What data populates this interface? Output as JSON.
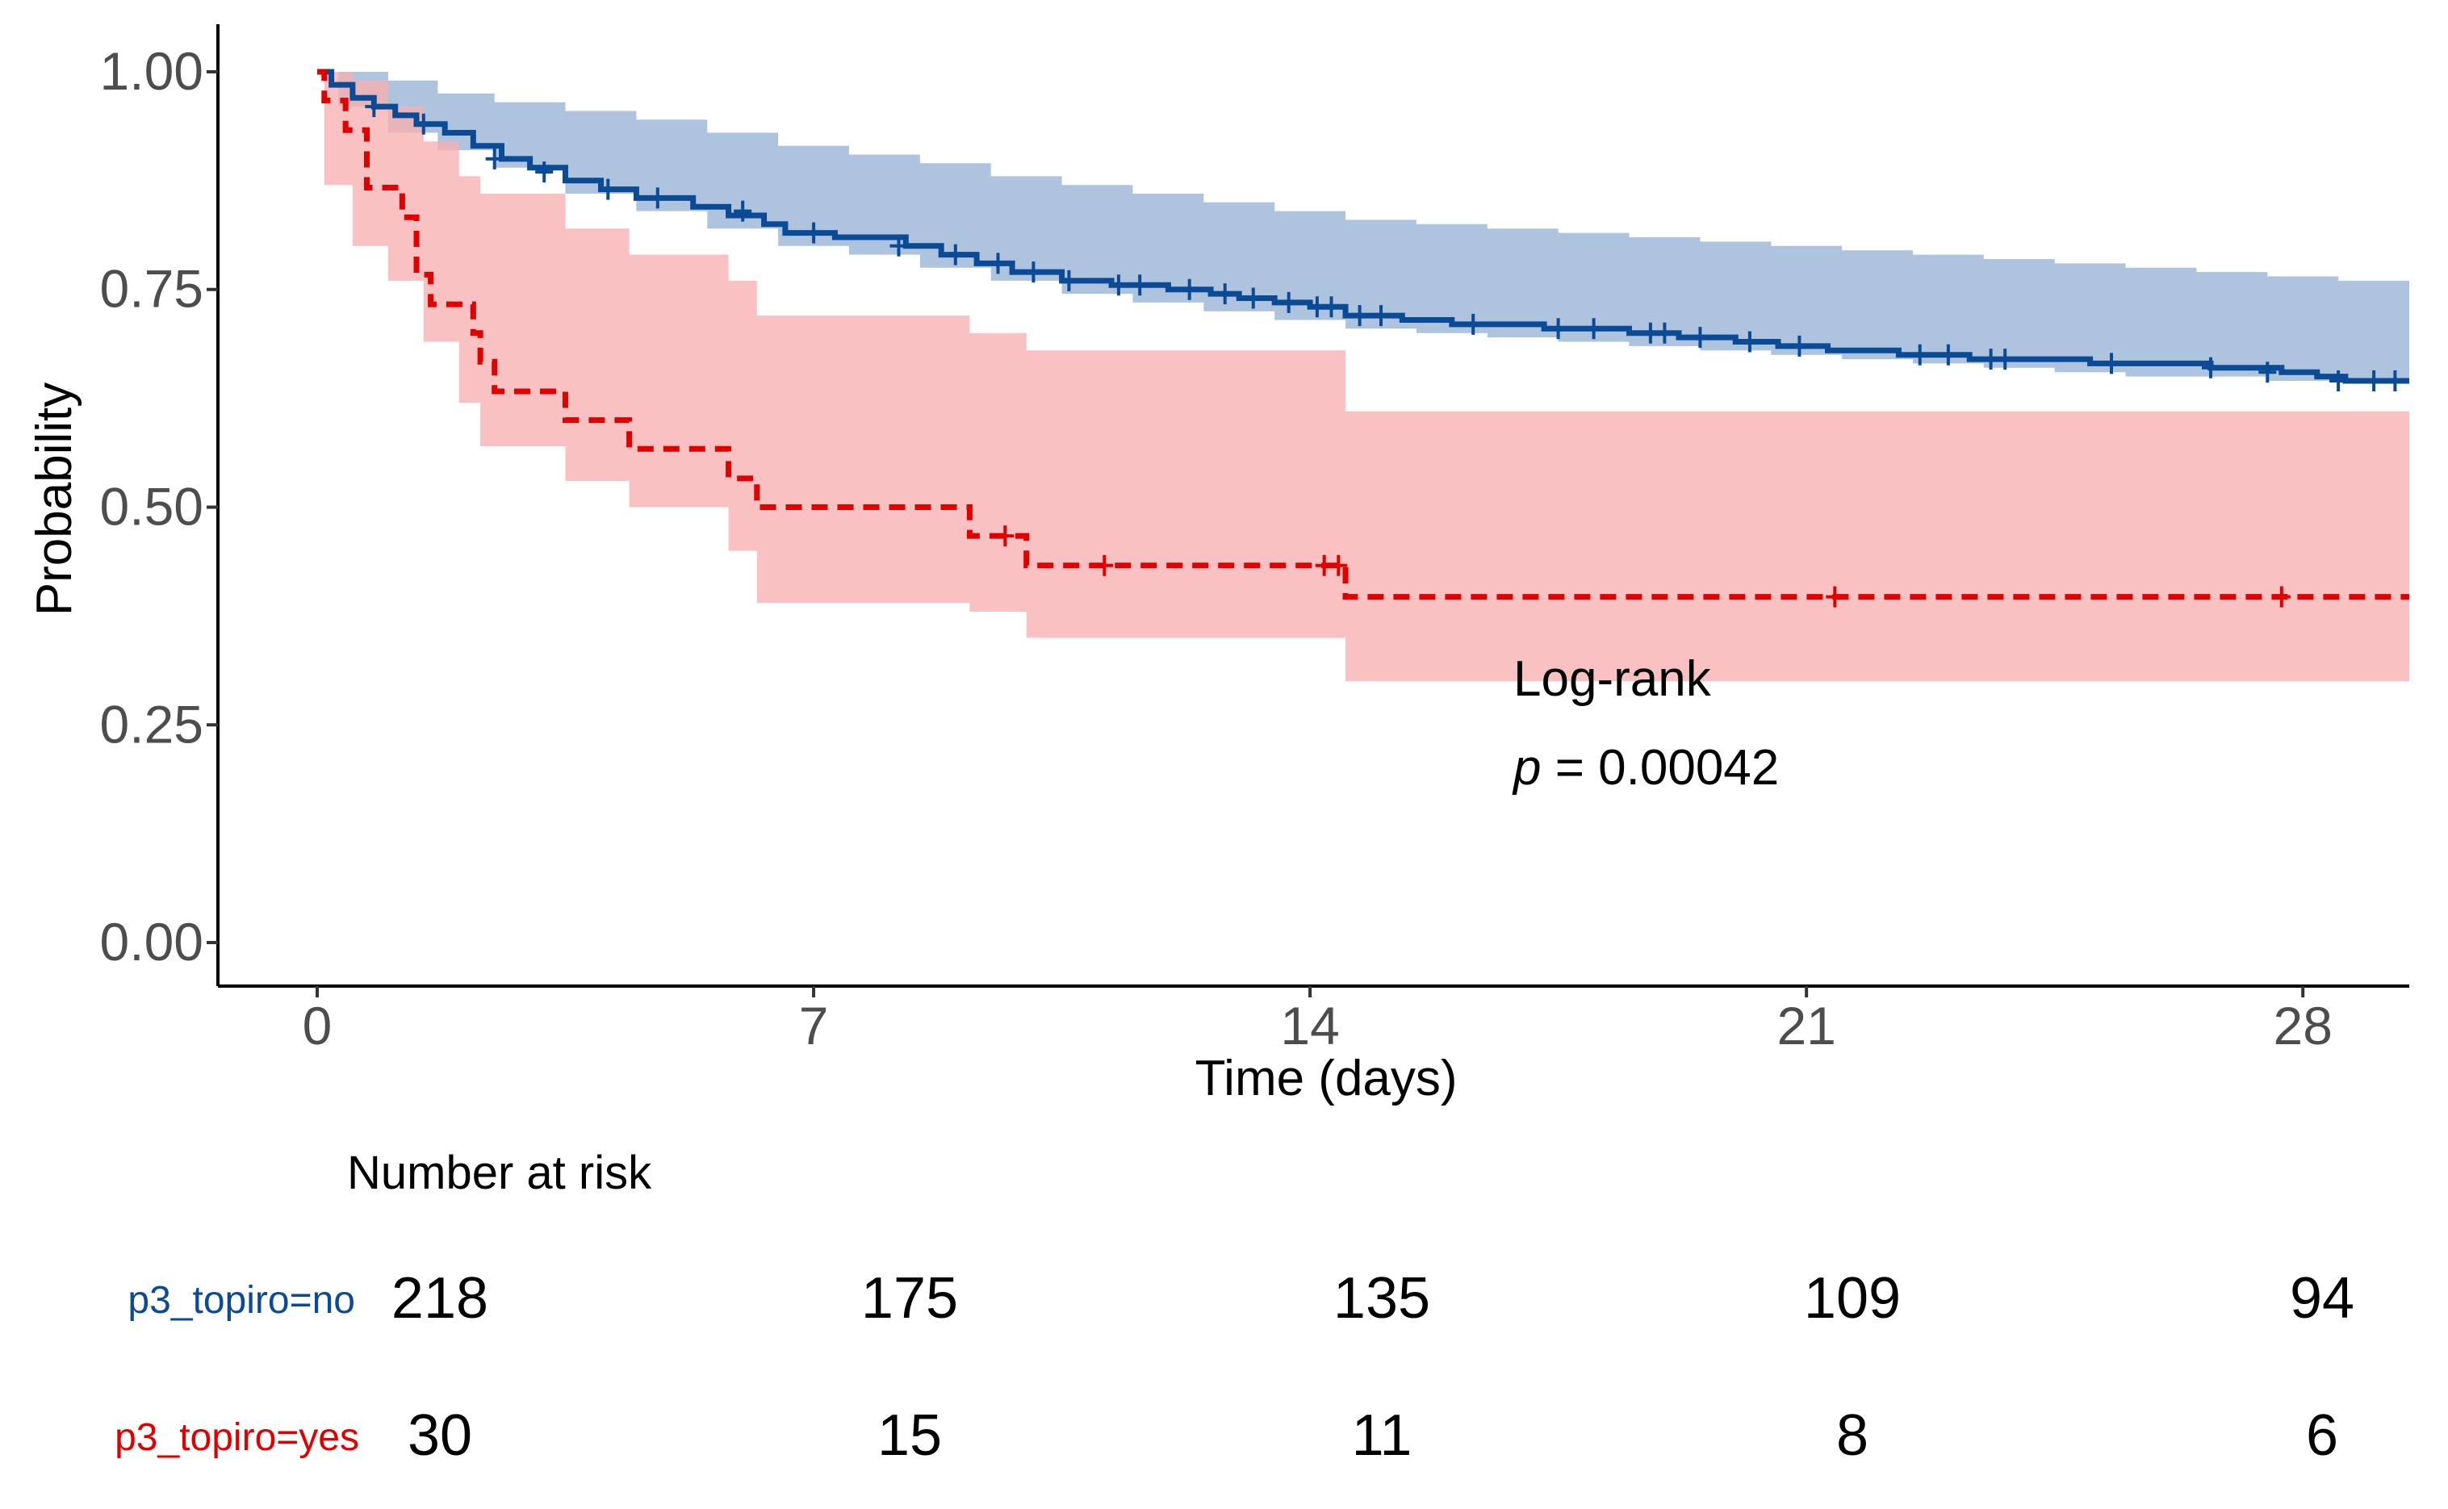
{
  "chart_data": {
    "type": "line",
    "subtype": "kaplan-meier",
    "xlabel": "Time (days)",
    "ylabel": "Probability",
    "xlim": [
      -1.4,
      29.5
    ],
    "ylim": [
      -0.05,
      1.05
    ],
    "xticks": [
      0,
      7,
      14,
      21,
      28
    ],
    "yticks": [
      0.0,
      0.25,
      0.5,
      0.75,
      1.0
    ],
    "ytick_labels": [
      "0.00",
      "0.25",
      "0.50",
      "0.75",
      "1.00"
    ],
    "colors": {
      "no": "#0b4a94",
      "yes": "#e00000",
      "no_band": "#a9c0dc",
      "yes_band": "#f7b0b0"
    },
    "series": [
      {
        "name": "p3_topiro=no",
        "style": "solid",
        "steps": [
          [
            0,
            1.0
          ],
          [
            0.2,
            0.985
          ],
          [
            0.5,
            0.97
          ],
          [
            0.8,
            0.96
          ],
          [
            1.1,
            0.95
          ],
          [
            1.4,
            0.94
          ],
          [
            1.8,
            0.93
          ],
          [
            2.2,
            0.915
          ],
          [
            2.6,
            0.9
          ],
          [
            3.0,
            0.89
          ],
          [
            3.5,
            0.875
          ],
          [
            4.0,
            0.865
          ],
          [
            4.5,
            0.855
          ],
          [
            5.3,
            0.845
          ],
          [
            5.8,
            0.835
          ],
          [
            6.3,
            0.825
          ],
          [
            6.6,
            0.815
          ],
          [
            7.3,
            0.81
          ],
          [
            8.3,
            0.8
          ],
          [
            8.8,
            0.79
          ],
          [
            9.3,
            0.78
          ],
          [
            9.8,
            0.77
          ],
          [
            10.5,
            0.76
          ],
          [
            11.2,
            0.755
          ],
          [
            12.0,
            0.75
          ],
          [
            12.6,
            0.745
          ],
          [
            13.0,
            0.74
          ],
          [
            13.5,
            0.735
          ],
          [
            14.0,
            0.73
          ],
          [
            14.5,
            0.72
          ],
          [
            15.3,
            0.715
          ],
          [
            16.0,
            0.71
          ],
          [
            17.3,
            0.705
          ],
          [
            18.5,
            0.7
          ],
          [
            19.2,
            0.695
          ],
          [
            20.0,
            0.69
          ],
          [
            20.6,
            0.685
          ],
          [
            21.3,
            0.68
          ],
          [
            22.3,
            0.675
          ],
          [
            23.3,
            0.67
          ],
          [
            25.0,
            0.665
          ],
          [
            26.7,
            0.66
          ],
          [
            27.7,
            0.655
          ],
          [
            28.2,
            0.65
          ],
          [
            28.6,
            0.645
          ],
          [
            29.5,
            0.645
          ]
        ],
        "band": [
          [
            0,
            1.0,
            1.0
          ],
          [
            0.3,
            1.0,
            0.96
          ],
          [
            1.0,
            0.99,
            0.93
          ],
          [
            1.7,
            0.975,
            0.91
          ],
          [
            2.5,
            0.965,
            0.89
          ],
          [
            3.5,
            0.955,
            0.86
          ],
          [
            4.5,
            0.945,
            0.84
          ],
          [
            5.5,
            0.93,
            0.82
          ],
          [
            6.5,
            0.915,
            0.8
          ],
          [
            7.5,
            0.905,
            0.79
          ],
          [
            8.5,
            0.895,
            0.775
          ],
          [
            9.5,
            0.88,
            0.76
          ],
          [
            10.5,
            0.87,
            0.745
          ],
          [
            11.5,
            0.86,
            0.735
          ],
          [
            12.5,
            0.85,
            0.725
          ],
          [
            13.5,
            0.84,
            0.715
          ],
          [
            14.5,
            0.83,
            0.705
          ],
          [
            15.5,
            0.825,
            0.7
          ],
          [
            16.5,
            0.82,
            0.695
          ],
          [
            17.5,
            0.815,
            0.69
          ],
          [
            18.5,
            0.81,
            0.685
          ],
          [
            19.5,
            0.805,
            0.68
          ],
          [
            20.5,
            0.8,
            0.675
          ],
          [
            21.5,
            0.795,
            0.67
          ],
          [
            22.5,
            0.79,
            0.665
          ],
          [
            23.5,
            0.785,
            0.66
          ],
          [
            24.5,
            0.78,
            0.655
          ],
          [
            25.5,
            0.775,
            0.65
          ],
          [
            26.5,
            0.77,
            0.65
          ],
          [
            27.5,
            0.765,
            0.645
          ],
          [
            28.5,
            0.76,
            0.645
          ],
          [
            29.5,
            0.76,
            0.64
          ]
        ],
        "censor": [
          [
            0.8,
            0.96
          ],
          [
            1.5,
            0.94
          ],
          [
            2.5,
            0.9
          ],
          [
            3.2,
            0.885
          ],
          [
            4.1,
            0.865
          ],
          [
            4.8,
            0.855
          ],
          [
            6.0,
            0.84
          ],
          [
            7.0,
            0.815
          ],
          [
            8.2,
            0.8
          ],
          [
            9.0,
            0.79
          ],
          [
            9.6,
            0.78
          ],
          [
            10.1,
            0.77
          ],
          [
            10.6,
            0.76
          ],
          [
            11.3,
            0.755
          ],
          [
            11.6,
            0.755
          ],
          [
            12.3,
            0.75
          ],
          [
            12.8,
            0.745
          ],
          [
            13.2,
            0.74
          ],
          [
            13.7,
            0.735
          ],
          [
            14.1,
            0.73
          ],
          [
            14.3,
            0.73
          ],
          [
            14.7,
            0.72
          ],
          [
            15.0,
            0.72
          ],
          [
            16.3,
            0.71
          ],
          [
            17.5,
            0.705
          ],
          [
            18.0,
            0.705
          ],
          [
            18.8,
            0.7
          ],
          [
            19.0,
            0.7
          ],
          [
            19.5,
            0.695
          ],
          [
            20.2,
            0.69
          ],
          [
            20.9,
            0.685
          ],
          [
            22.6,
            0.675
          ],
          [
            23.0,
            0.675
          ],
          [
            23.6,
            0.67
          ],
          [
            23.8,
            0.67
          ],
          [
            25.3,
            0.665
          ],
          [
            26.7,
            0.66
          ],
          [
            27.5,
            0.655
          ],
          [
            28.5,
            0.645
          ],
          [
            29.0,
            0.645
          ],
          [
            29.3,
            0.645
          ]
        ]
      },
      {
        "name": "p3_topiro=yes",
        "style": "dashed",
        "steps": [
          [
            0,
            1.0
          ],
          [
            0.1,
            0.967
          ],
          [
            0.4,
            0.933
          ],
          [
            0.7,
            0.867
          ],
          [
            1.2,
            0.833
          ],
          [
            1.4,
            0.767
          ],
          [
            1.6,
            0.733
          ],
          [
            2.2,
            0.7
          ],
          [
            2.3,
            0.667
          ],
          [
            2.5,
            0.633
          ],
          [
            3.5,
            0.6
          ],
          [
            4.4,
            0.567
          ],
          [
            5.8,
            0.533
          ],
          [
            6.2,
            0.5
          ],
          [
            9.2,
            0.467
          ],
          [
            10.0,
            0.433
          ],
          [
            14.5,
            0.397
          ],
          [
            29.5,
            0.397
          ]
        ],
        "band": [
          [
            0,
            1.0,
            1.0
          ],
          [
            0.1,
            1.0,
            0.87
          ],
          [
            0.5,
            0.99,
            0.8
          ],
          [
            1.0,
            0.96,
            0.76
          ],
          [
            1.5,
            0.92,
            0.69
          ],
          [
            2.0,
            0.88,
            0.62
          ],
          [
            2.3,
            0.86,
            0.57
          ],
          [
            3.5,
            0.82,
            0.53
          ],
          [
            4.4,
            0.79,
            0.5
          ],
          [
            5.8,
            0.76,
            0.45
          ],
          [
            6.2,
            0.72,
            0.39
          ],
          [
            9.2,
            0.7,
            0.38
          ],
          [
            10.0,
            0.68,
            0.35
          ],
          [
            14.5,
            0.61,
            0.3
          ],
          [
            29.5,
            0.61,
            0.3
          ]
        ],
        "censor": [
          [
            9.7,
            0.467
          ],
          [
            11.1,
            0.433
          ],
          [
            14.2,
            0.433
          ],
          [
            14.4,
            0.433
          ],
          [
            21.4,
            0.397
          ],
          [
            27.7,
            0.397
          ]
        ]
      }
    ],
    "annotation": {
      "line1": "Log-rank",
      "p_symbol": "p",
      "p_text": " = 0.00042"
    },
    "risk_table": {
      "title": "Number at risk",
      "times": [
        0,
        7,
        14,
        21,
        28
      ],
      "rows": [
        {
          "label": "p3_topiro=no",
          "values": [
            "218",
            "175",
            "135",
            "109",
            "94"
          ]
        },
        {
          "label": "p3_topiro=yes",
          "values": [
            "30",
            "15",
            "11",
            "8",
            "6"
          ]
        }
      ]
    }
  }
}
